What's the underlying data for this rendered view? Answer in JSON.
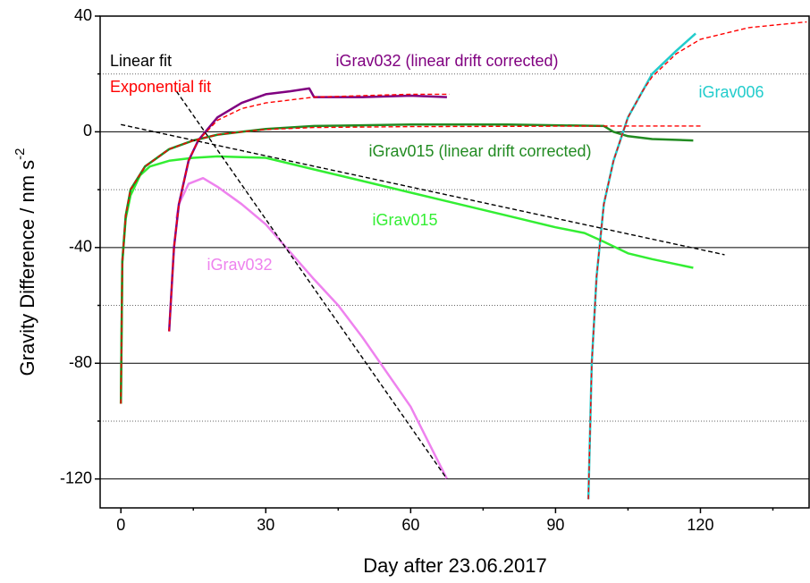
{
  "chart_data": {
    "type": "line",
    "x_label": "Day after 23.06.2017",
    "y_label": "Gravity Difference / nm s",
    "y_label_sup": "-2",
    "xlim": [
      -4.3,
      142.5
    ],
    "ylim": [
      -130,
      40
    ],
    "xticks": [
      0,
      30,
      60,
      90,
      120
    ],
    "xminor": [
      15,
      45,
      75,
      105,
      135
    ],
    "yticks": [
      -120,
      -80,
      -40,
      0,
      40
    ],
    "yminor": [
      -100,
      -60,
      -20,
      20
    ],
    "grid": true,
    "legend": [
      {
        "name": "Linear fit",
        "color": "#000000"
      },
      {
        "name": "Exponential fit",
        "color": "#ff0000"
      }
    ],
    "series": [
      {
        "name": "iGrav015",
        "color": "#33ee33",
        "x": [
          0,
          0.3,
          1,
          2,
          4,
          6,
          10,
          15,
          20,
          30,
          40,
          50,
          60,
          70,
          80,
          90,
          96,
          100,
          105,
          110,
          118.5
        ],
        "values": [
          -94,
          -45,
          -30,
          -22,
          -15,
          -12,
          -10,
          -9,
          -8.5,
          -9,
          -13,
          -17,
          -21,
          -25,
          -29,
          -33,
          -35,
          -38,
          -42,
          -44,
          -47
        ]
      },
      {
        "name": "iGrav015 (linear drift corrected)",
        "color": "#228b22",
        "x": [
          0,
          0.3,
          1,
          2,
          5,
          10,
          15,
          20,
          25,
          30,
          40,
          60,
          80,
          100,
          102,
          105,
          110,
          118.5
        ],
        "values": [
          -94,
          -45,
          -29,
          -20,
          -12,
          -6,
          -3,
          -1,
          0,
          1,
          2,
          2.5,
          2.5,
          2,
          0,
          -1.5,
          -2.5,
          -3
        ]
      },
      {
        "name": "iGrav032",
        "color": "#ee82ee",
        "x": [
          11.5,
          12,
          14,
          17,
          20,
          25,
          30,
          40,
          45,
          50,
          60,
          67.5
        ],
        "values": [
          -30,
          -25,
          -18,
          -16,
          -19,
          -25,
          -32,
          -51,
          -60,
          -71,
          -95,
          -120
        ]
      },
      {
        "name": "iGrav032 (linear drift corrected)",
        "color": "#800080",
        "x": [
          10,
          11,
          12,
          14,
          16,
          20,
          25,
          30,
          35,
          39,
          40,
          45,
          50,
          60,
          67.5
        ],
        "values": [
          -69,
          -40,
          -25,
          -10,
          -3,
          5,
          10,
          13,
          14,
          15,
          12,
          12,
          12,
          12.5,
          12
        ]
      },
      {
        "name": "iGrav006",
        "color": "#22cccc",
        "x": [
          96.8,
          97.5,
          98.5,
          100,
          102,
          105,
          108,
          110,
          115,
          119
        ],
        "values": [
          -127,
          -80,
          -50,
          -25,
          -10,
          5,
          14,
          20,
          28,
          34
        ]
      }
    ],
    "fits": [
      {
        "color": "#000000",
        "x": [
          0,
          125
        ],
        "values": [
          2.5,
          -42.5
        ]
      },
      {
        "color": "#000000",
        "x": [
          11.5,
          67.5
        ],
        "values": [
          14,
          -120
        ]
      },
      {
        "color": "#ff0000",
        "x": [
          0,
          0.3,
          1,
          2,
          5,
          10,
          15,
          20,
          25,
          30,
          40,
          60,
          80,
          100,
          120
        ],
        "values": [
          -94,
          -45,
          -29,
          -20,
          -12,
          -6,
          -3,
          -1,
          0,
          0.8,
          1.5,
          1.8,
          1.9,
          2,
          2
        ]
      },
      {
        "color": "#ff0000",
        "x": [
          10,
          11,
          12,
          14,
          16,
          20,
          25,
          30,
          40,
          50,
          60,
          68
        ],
        "values": [
          -69,
          -40,
          -25,
          -10,
          -3,
          4,
          8,
          10,
          12,
          12.5,
          13,
          13
        ]
      },
      {
        "color": "#ff0000",
        "x": [
          96.8,
          97.5,
          98.5,
          100,
          102,
          105,
          108,
          110,
          115,
          120,
          130,
          142
        ],
        "values": [
          -127,
          -80,
          -50,
          -25,
          -10,
          5,
          14,
          19,
          27,
          32,
          36,
          38
        ]
      }
    ]
  }
}
